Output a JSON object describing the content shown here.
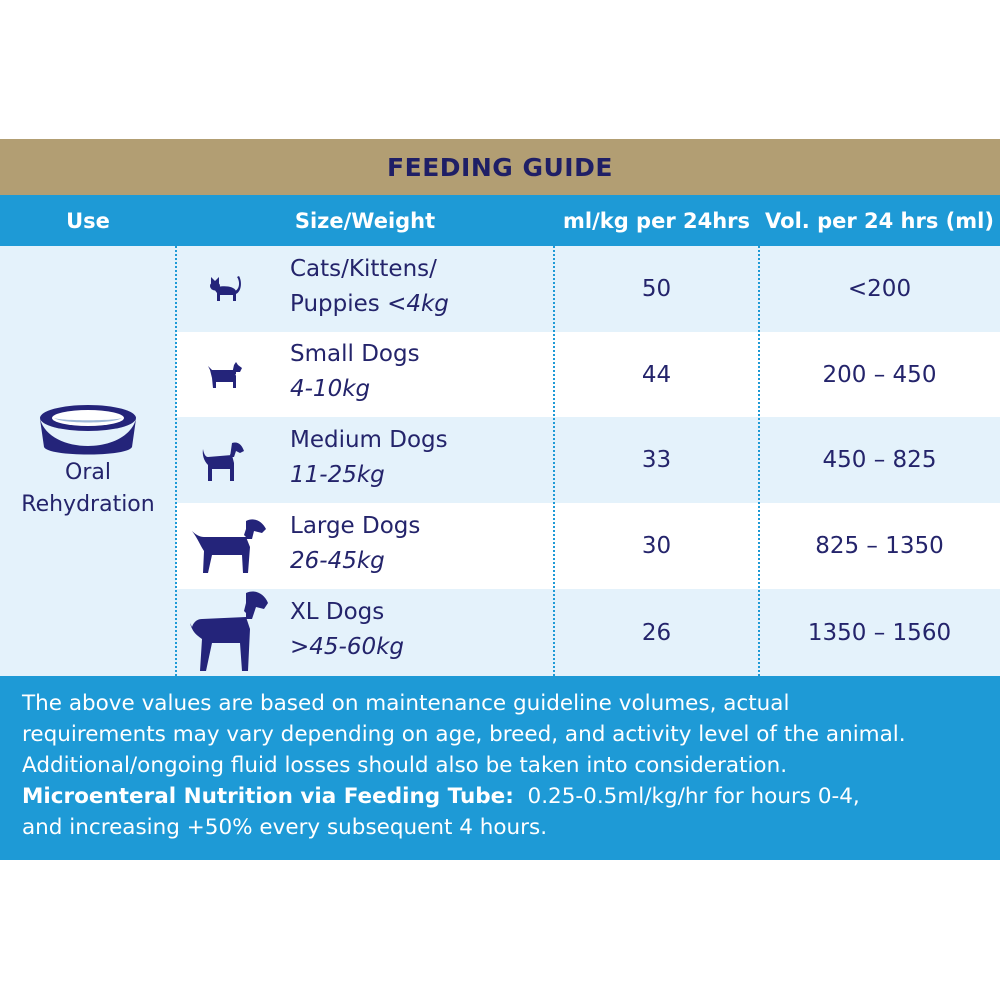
{
  "title": "FEEDING GUIDE",
  "columns": {
    "use": "Use",
    "size_weight": "Size/Weight",
    "ml_per_kg": "ml/kg per 24hrs",
    "volume": "Vol. per 24 hrs (ml)"
  },
  "use": {
    "icon": "bowl-icon",
    "label_line1": "Oral",
    "label_line2": "Rehydration"
  },
  "rows": [
    {
      "icon": "cat-icon",
      "name_line1": "Cats/Kittens/",
      "name_line2": "Puppies ",
      "weight": "<4kg",
      "ml_per_kg": "50",
      "volume": "<200"
    },
    {
      "icon": "small-dog-icon",
      "name_line1": "Small Dogs",
      "name_line2": "",
      "weight": "4-10kg",
      "ml_per_kg": "44",
      "volume": "200 – 450"
    },
    {
      "icon": "medium-dog-icon",
      "name_line1": "Medium Dogs",
      "name_line2": "",
      "weight": "11-25kg",
      "ml_per_kg": "33",
      "volume": "450 – 825"
    },
    {
      "icon": "large-dog-icon",
      "name_line1": "Large Dogs",
      "name_line2": "",
      "weight": "26-45kg",
      "ml_per_kg": "30",
      "volume": "825 – 1350"
    },
    {
      "icon": "xl-dog-icon",
      "name_line1": "XL Dogs",
      "name_line2": "",
      "weight": ">45-60kg",
      "ml_per_kg": "26",
      "volume": "1350 – 1560"
    }
  ],
  "notes": {
    "line1": "The above values are based on maintenance guideline volumes, actual",
    "line2": "requirements may vary depending on age, breed, and activity level of the animal.",
    "line3": "Additional/ongoing fluid losses should also be taken into consideration.",
    "tube_label": "Microenteral Nutrition via Feeding Tube:",
    "tube_text": "  0.25-0.5ml/kg/hr for hours 0-4,",
    "line5": "and increasing +50% every subsequent 4 hours."
  },
  "colors": {
    "title_bar": "#b29e73",
    "header": "#1e9ad6",
    "row_shade": "#e4f2fb",
    "text": "#24246b"
  }
}
